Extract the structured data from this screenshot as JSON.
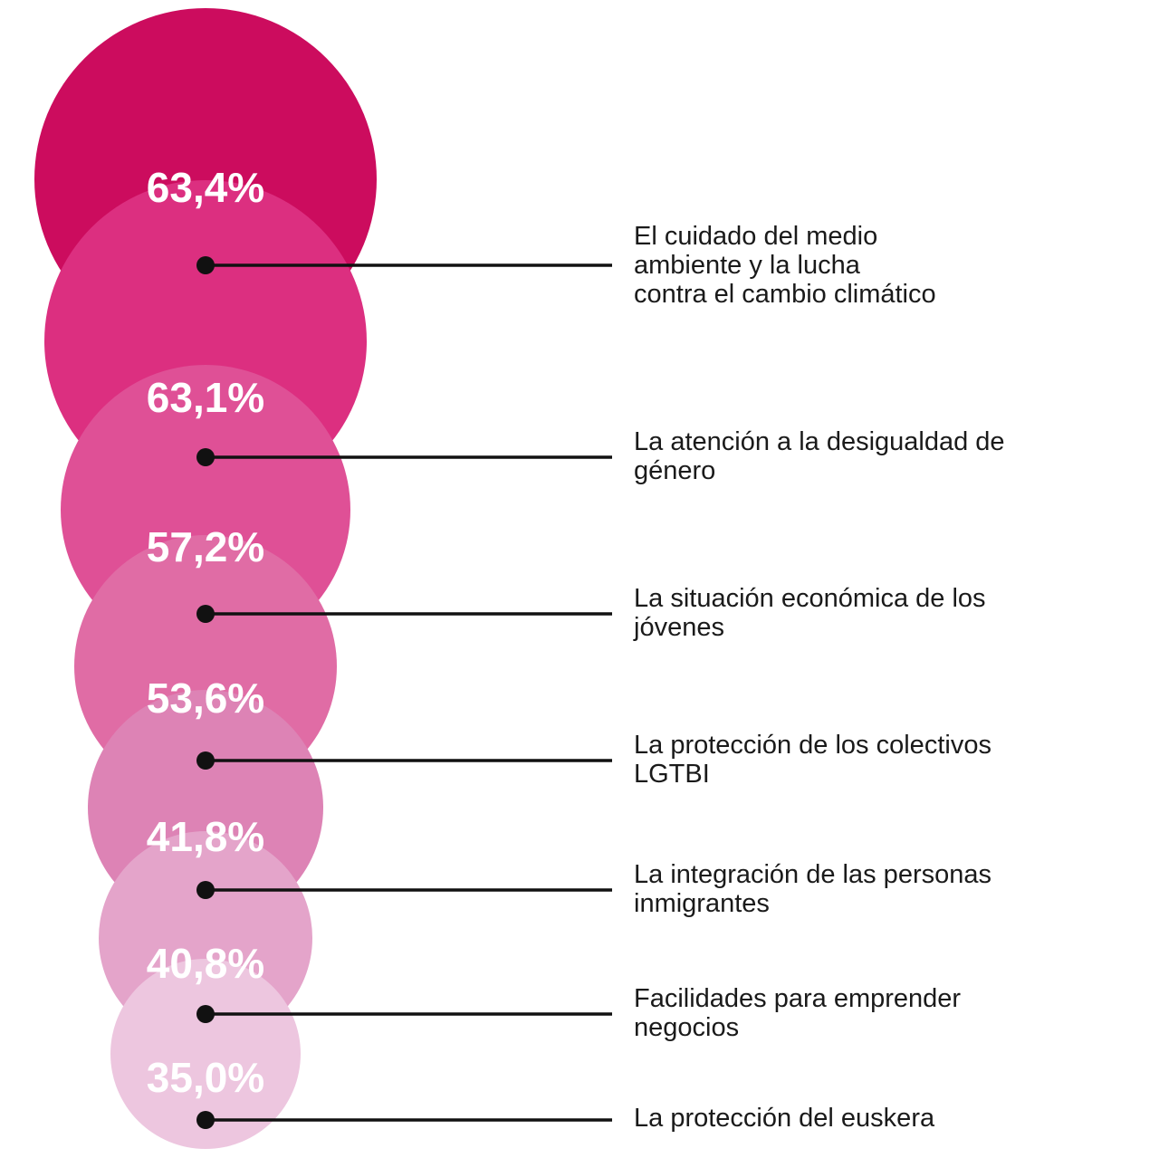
{
  "chart_data": {
    "type": "bubble",
    "unit": "%",
    "categories": [
      "El cuidado del medio ambiente y la lucha contra el cambio climático",
      "La atención a la desigualdad de género",
      "La situación económica de los jóvenes",
      "La protección de los colectivos LGTBI",
      "La integración de las personas inmigrantes",
      "Facilidades para emprender negocios",
      "La protección del euskera"
    ],
    "values": [
      63.4,
      63.1,
      57.2,
      53.6,
      41.8,
      40.8,
      35.0
    ],
    "value_labels": [
      "63,4%",
      "63,1%",
      "57,2%",
      "53,6%",
      "41,8%",
      "40,8%",
      "35,0%"
    ],
    "label_lines": [
      [
        "El cuidado del medio",
        "ambiente y la lucha",
        "contra el cambio climático"
      ],
      [
        "La atención a la desigualdad de",
        "género"
      ],
      [
        "La situación económica de los",
        "jóvenes"
      ],
      [
        "La protección de los colectivos",
        "LGTBI"
      ],
      [
        "La integración de las personas",
        "inmigrantes"
      ],
      [
        "Facilidades para emprender",
        "negocios"
      ],
      [
        "La protección del euskera"
      ]
    ],
    "colors": [
      "#cc0c5e",
      "#dc2f80",
      "#df5096",
      "#e06ca5",
      "#dd83b5",
      "#e4a4ca",
      "#edc6df"
    ],
    "dot_color": "#111111",
    "line_color": "#111111"
  }
}
